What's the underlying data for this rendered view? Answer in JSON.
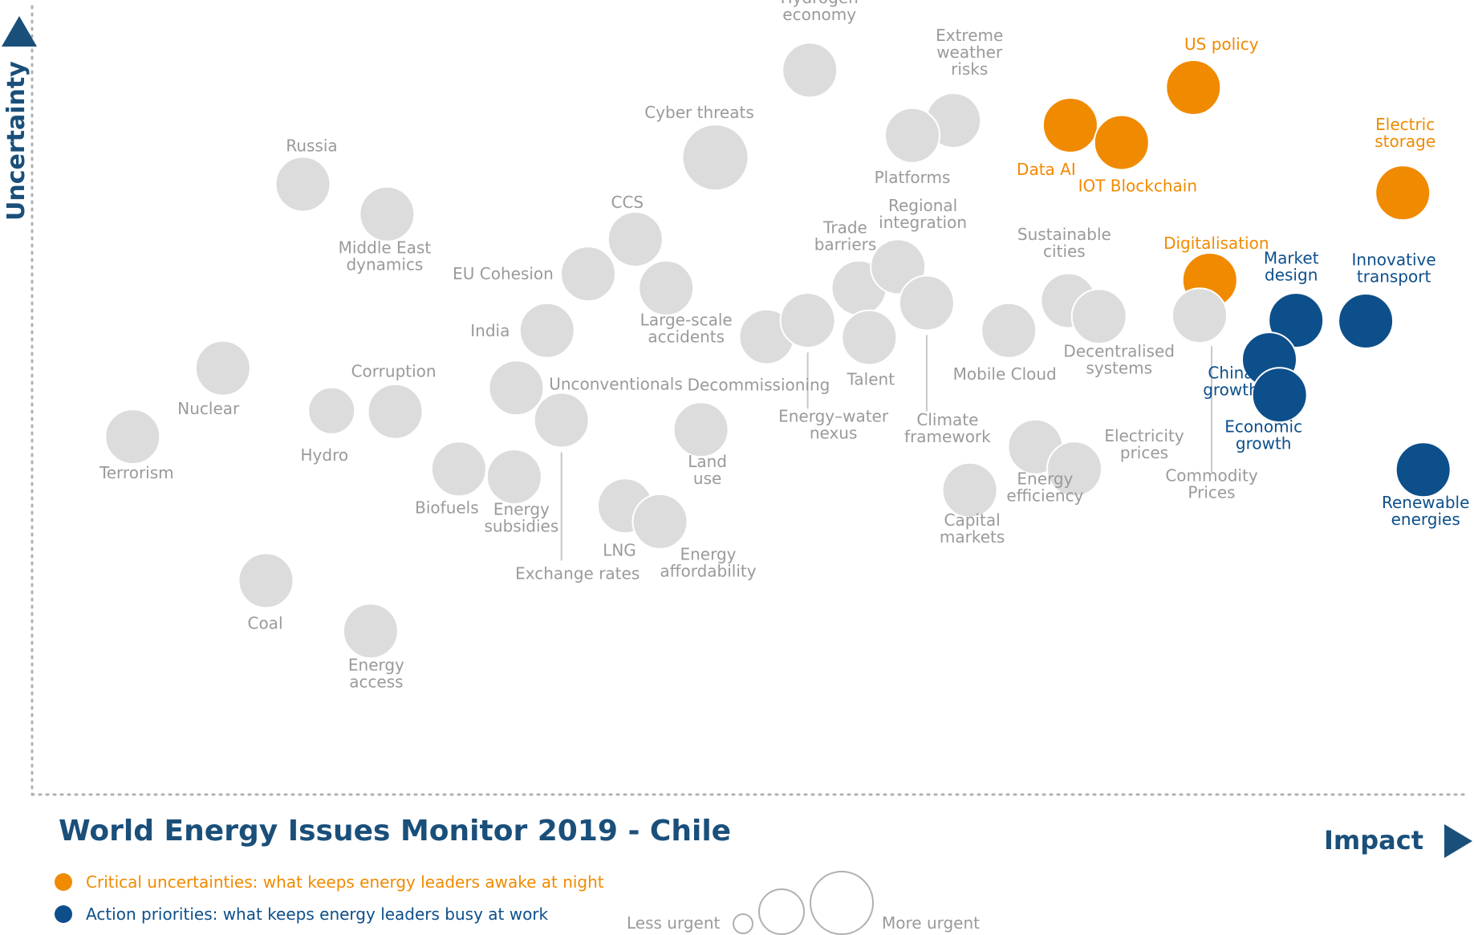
{
  "title": "World Energy Issues Monitor 2019 - Chile",
  "colors": {
    "neutral": "#dcdcdc",
    "neutral_text": "#9a9a9a",
    "critical": "#f08a00",
    "action": "#0d4f8b",
    "accent": "#1a4f7a",
    "leader": "#c8c8c8"
  },
  "legend": {
    "critical": "Critical uncertainties: what keeps energy leaders awake at night",
    "action": "Action priorities: what keeps energy leaders busy at work",
    "less_urgent": "Less urgent",
    "more_urgent": "More urgent"
  },
  "chart_data": {
    "type": "scatter",
    "title": "World Energy Issues Monitor 2019 - Chile",
    "xlabel": "Impact",
    "ylabel": "Uncertainty",
    "x_scale": "qualitative (low to high impact, no tick labels)",
    "y_scale": "qualitative (low to high uncertainty, no tick labels)",
    "grid": false,
    "legend_position": "bottom-left",
    "encoding": "bubble size = urgency",
    "points": [
      {
        "name": "Hydrogen economy",
        "x": 3.79,
        "y": 9.21,
        "urgency": "medium",
        "category": "neutral"
      },
      {
        "name": "Extreme weather risks",
        "x": 4.49,
        "y": 8.57,
        "urgency": "medium",
        "category": "neutral"
      },
      {
        "name": "Platforms",
        "x": 4.29,
        "y": 8.38,
        "urgency": "medium",
        "category": "neutral"
      },
      {
        "name": "Cyber threats",
        "x": 3.33,
        "y": 8.1,
        "urgency": "high",
        "category": "neutral"
      },
      {
        "name": "US policy",
        "x": 5.66,
        "y": 8.99,
        "urgency": "medium",
        "category": "critical"
      },
      {
        "name": "Data AI",
        "x": 5.06,
        "y": 8.51,
        "urgency": "medium",
        "category": "critical"
      },
      {
        "name": "IOT Blockchain",
        "x": 5.31,
        "y": 8.29,
        "urgency": "medium",
        "category": "critical"
      },
      {
        "name": "Electric storage",
        "x": 6.68,
        "y": 7.65,
        "urgency": "medium",
        "category": "critical"
      },
      {
        "name": "Russia",
        "x": 1.32,
        "y": 7.76,
        "urgency": "medium",
        "category": "neutral"
      },
      {
        "name": "Middle East dynamics",
        "x": 1.73,
        "y": 7.38,
        "urgency": "medium",
        "category": "neutral"
      },
      {
        "name": "CCS",
        "x": 2.94,
        "y": 7.06,
        "urgency": "medium",
        "category": "neutral"
      },
      {
        "name": "EU Cohesion",
        "x": 2.71,
        "y": 6.62,
        "urgency": "medium",
        "category": "neutral"
      },
      {
        "name": "Large-scale accidents",
        "x": 3.09,
        "y": 6.44,
        "urgency": "medium",
        "category": "neutral"
      },
      {
        "name": "Trade barriers",
        "x": 4.03,
        "y": 6.44,
        "urgency": "medium",
        "category": "neutral"
      },
      {
        "name": "Regional integration",
        "x": 4.22,
        "y": 6.71,
        "urgency": "medium",
        "category": "neutral"
      },
      {
        "name": "Climate framework",
        "x": 4.36,
        "y": 6.25,
        "urgency": "medium",
        "category": "neutral"
      },
      {
        "name": "Sustainable cities",
        "x": 5.05,
        "y": 6.28,
        "urgency": "medium",
        "category": "neutral"
      },
      {
        "name": "Decentralised systems",
        "x": 5.2,
        "y": 6.08,
        "urgency": "medium",
        "category": "neutral"
      },
      {
        "name": "Digitalisation",
        "x": 5.74,
        "y": 6.54,
        "urgency": "medium",
        "category": "critical"
      },
      {
        "name": "Commodity Prices",
        "x": 5.69,
        "y": 6.09,
        "urgency": "medium",
        "category": "neutral"
      },
      {
        "name": "India",
        "x": 2.51,
        "y": 5.9,
        "urgency": "medium",
        "category": "neutral"
      },
      {
        "name": "Decommissioning",
        "x": 3.58,
        "y": 5.82,
        "urgency": "medium",
        "category": "neutral"
      },
      {
        "name": "Energy-water nexus",
        "x": 3.78,
        "y": 6.03,
        "urgency": "medium",
        "category": "neutral"
      },
      {
        "name": "Talent",
        "x": 4.08,
        "y": 5.81,
        "urgency": "medium",
        "category": "neutral"
      },
      {
        "name": "Mobile Cloud",
        "x": 4.76,
        "y": 5.9,
        "urgency": "medium",
        "category": "neutral"
      },
      {
        "name": "Nuclear",
        "x": 0.93,
        "y": 5.42,
        "urgency": "medium",
        "category": "neutral"
      },
      {
        "name": "Corruption",
        "x": 1.77,
        "y": 4.87,
        "urgency": "medium",
        "category": "neutral"
      },
      {
        "name": "Hydro",
        "x": 1.46,
        "y": 4.88,
        "urgency": "low",
        "category": "neutral"
      },
      {
        "name": "Unconventionals",
        "x": 2.36,
        "y": 5.17,
        "urgency": "medium",
        "category": "neutral"
      },
      {
        "name": "Exchange rates",
        "x": 2.58,
        "y": 4.76,
        "urgency": "medium",
        "category": "neutral"
      },
      {
        "name": "Land use",
        "x": 3.26,
        "y": 4.64,
        "urgency": "medium",
        "category": "neutral"
      },
      {
        "name": "Terrorism",
        "x": 0.49,
        "y": 4.55,
        "urgency": "medium",
        "category": "neutral"
      },
      {
        "name": "Biofuels",
        "x": 2.08,
        "y": 4.14,
        "urgency": "medium",
        "category": "neutral"
      },
      {
        "name": "Energy subsidies",
        "x": 2.35,
        "y": 4.04,
        "urgency": "medium",
        "category": "neutral"
      },
      {
        "name": "LNG",
        "x": 2.89,
        "y": 3.67,
        "urgency": "medium",
        "category": "neutral"
      },
      {
        "name": "Energy affordability",
        "x": 3.06,
        "y": 3.47,
        "urgency": "medium",
        "category": "neutral"
      },
      {
        "name": "Energy efficiency",
        "x": 4.89,
        "y": 4.42,
        "urgency": "medium",
        "category": "neutral"
      },
      {
        "name": "Electricity prices",
        "x": 5.08,
        "y": 4.14,
        "urgency": "medium",
        "category": "neutral"
      },
      {
        "name": "Capital markets",
        "x": 4.57,
        "y": 3.87,
        "urgency": "medium",
        "category": "neutral"
      },
      {
        "name": "Coal",
        "x": 1.14,
        "y": 2.72,
        "urgency": "medium",
        "category": "neutral"
      },
      {
        "name": "Energy access",
        "x": 1.65,
        "y": 2.08,
        "urgency": "medium",
        "category": "neutral"
      },
      {
        "name": "Market design",
        "x": 6.16,
        "y": 6.03,
        "urgency": "medium",
        "category": "action"
      },
      {
        "name": "Innovative transport",
        "x": 6.5,
        "y": 6.02,
        "urgency": "medium",
        "category": "action"
      },
      {
        "name": "China growth",
        "x": 6.03,
        "y": 5.53,
        "urgency": "medium",
        "category": "action"
      },
      {
        "name": "Economic growth",
        "x": 6.08,
        "y": 5.08,
        "urgency": "medium",
        "category": "action"
      },
      {
        "name": "Renewable energies",
        "x": 6.78,
        "y": 4.13,
        "urgency": "medium",
        "category": "action"
      }
    ]
  }
}
